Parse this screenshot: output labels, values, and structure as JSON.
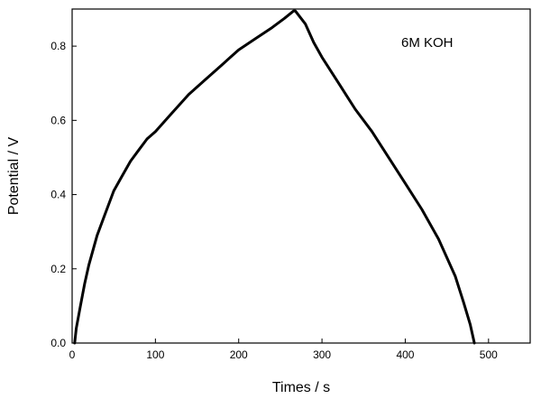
{
  "chart_data": {
    "type": "line",
    "title": "",
    "xlabel": "Times / s",
    "ylabel": "Potential / V",
    "xlim": [
      0,
      550
    ],
    "ylim": [
      0,
      0.9
    ],
    "x_ticks": [
      0,
      100,
      200,
      300,
      400,
      500
    ],
    "y_ticks": [
      0.0,
      0.2,
      0.4,
      0.6,
      0.8
    ],
    "x_tick_labels": [
      "0",
      "100",
      "200",
      "300",
      "400",
      "500"
    ],
    "y_tick_labels": [
      "0.0",
      "0.2",
      "0.4",
      "0.6",
      "0.8"
    ],
    "grid": false,
    "annotation": "6M KOH",
    "series": [
      {
        "color": "#000000",
        "x": [
          3,
          5,
          10,
          15,
          20,
          30,
          40,
          50,
          60,
          70,
          80,
          90,
          100,
          120,
          140,
          160,
          180,
          200,
          220,
          240,
          255,
          266,
          268,
          280,
          290,
          300,
          320,
          340,
          360,
          380,
          400,
          420,
          440,
          460,
          470,
          478,
          483
        ],
        "y": [
          0.0,
          0.04,
          0.1,
          0.16,
          0.21,
          0.29,
          0.35,
          0.41,
          0.45,
          0.49,
          0.52,
          0.55,
          0.57,
          0.62,
          0.67,
          0.71,
          0.75,
          0.79,
          0.82,
          0.85,
          0.875,
          0.895,
          0.895,
          0.86,
          0.81,
          0.77,
          0.7,
          0.63,
          0.57,
          0.5,
          0.43,
          0.36,
          0.28,
          0.18,
          0.11,
          0.05,
          0.0
        ]
      }
    ]
  }
}
